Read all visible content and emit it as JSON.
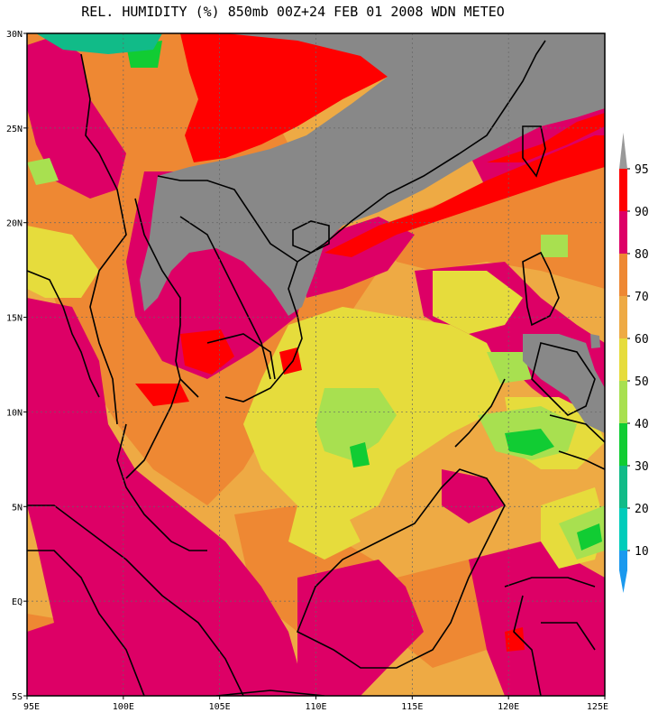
{
  "title": "REL. HUMIDITY (%) 850mb 00Z+24 FEB 01 2008 WDN METEO",
  "lat_ticks": [
    {
      "label": "30N",
      "value": 30
    },
    {
      "label": "25N",
      "value": 25
    },
    {
      "label": "20N",
      "value": 20
    },
    {
      "label": "15N",
      "value": 15
    },
    {
      "label": "10N",
      "value": 10
    },
    {
      "label": "5N",
      "value": 5
    },
    {
      "label": "EQ",
      "value": 0
    },
    {
      "label": "5S",
      "value": -5
    }
  ],
  "lon_ticks": [
    {
      "label": "95E",
      "value": 95
    },
    {
      "label": "100E",
      "value": 100
    },
    {
      "label": "105E",
      "value": 105
    },
    {
      "label": "110E",
      "value": 110
    },
    {
      "label": "115E",
      "value": 115
    },
    {
      "label": "120E",
      "value": 120
    },
    {
      "label": "125E",
      "value": 125
    }
  ],
  "legend": {
    "levels": [
      "95",
      "90",
      "80",
      "70",
      "60",
      "50",
      "40",
      "30",
      "20",
      "10"
    ],
    "colors": [
      "#ff0000",
      "#dd0066",
      "#ee8833",
      "#eeaa44",
      "#e6dc3c",
      "#a8e050",
      "#11cc33",
      "#11bb88",
      "#00ccbb",
      "#1a99ee"
    ],
    "top_arrow_color": "#999999",
    "bottom_arrow_color": "#1a99ee"
  },
  "colors": {
    "land_mask": "#888888",
    "coastline": "#000000",
    "grid": "#666666"
  },
  "chart_data": {
    "type": "heatmap",
    "title": "REL. HUMIDITY (%) 850mb 00Z+24 FEB 01 2008 WDN METEO",
    "xlim": [
      95,
      125
    ],
    "ylim": [
      -5,
      30
    ],
    "grid": true,
    "legend_placement": "right"
  }
}
